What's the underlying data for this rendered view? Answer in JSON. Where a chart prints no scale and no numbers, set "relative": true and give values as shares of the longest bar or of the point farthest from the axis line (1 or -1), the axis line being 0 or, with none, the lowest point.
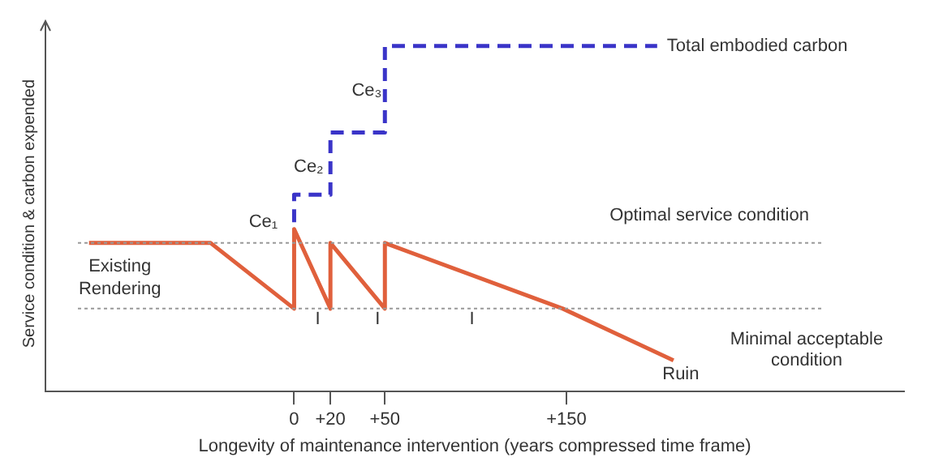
{
  "chart_data": {
    "type": "line",
    "xlabel": "Longevity of maintenance intervention (years compressed time frame)",
    "ylabel": "Service condition & carbon expended",
    "relative": true,
    "xlim": [
      -137,
      336
    ],
    "xticks": [
      0,
      {
        "value": 20,
        "label": "+20"
      },
      {
        "value": 50,
        "label": "+50"
      },
      {
        "value": 150,
        "label": "+150"
      }
    ],
    "series": [
      {
        "name": "Total embodied carbon",
        "color": "#3a34c8",
        "line_style": "dashed",
        "x": [
          0,
          0,
          20,
          20,
          50,
          50,
          200
        ],
        "values": [
          0.49,
          0.57,
          0.57,
          0.75,
          0.75,
          1,
          1
        ]
      },
      {
        "color": "#e0603c",
        "line_style": "solid",
        "x": [
          -113,
          -46,
          0,
          0,
          20,
          20,
          50,
          50,
          148,
          209
        ],
        "values": [
          0.43,
          0.43,
          0.24,
          0.47,
          0.24,
          0.43,
          0.24,
          0.43,
          0.24,
          0.09
        ]
      }
    ],
    "ref_lines": [
      {
        "axis": "y",
        "value": 0.43,
        "label": "Optimal service condition",
        "color": "#999999",
        "line_style": "dotted"
      },
      {
        "axis": "y",
        "value": 0.24,
        "label": "Minimal acceptable condition",
        "color": "#999999",
        "line_style": "dotted"
      }
    ],
    "annotations": [
      "Existing Rendering",
      "Ce₁",
      "Ce₂",
      "Ce₃",
      "I",
      "I",
      "I",
      "Ruin"
    ],
    "grid": false,
    "legend": false,
    "marker": "none"
  }
}
